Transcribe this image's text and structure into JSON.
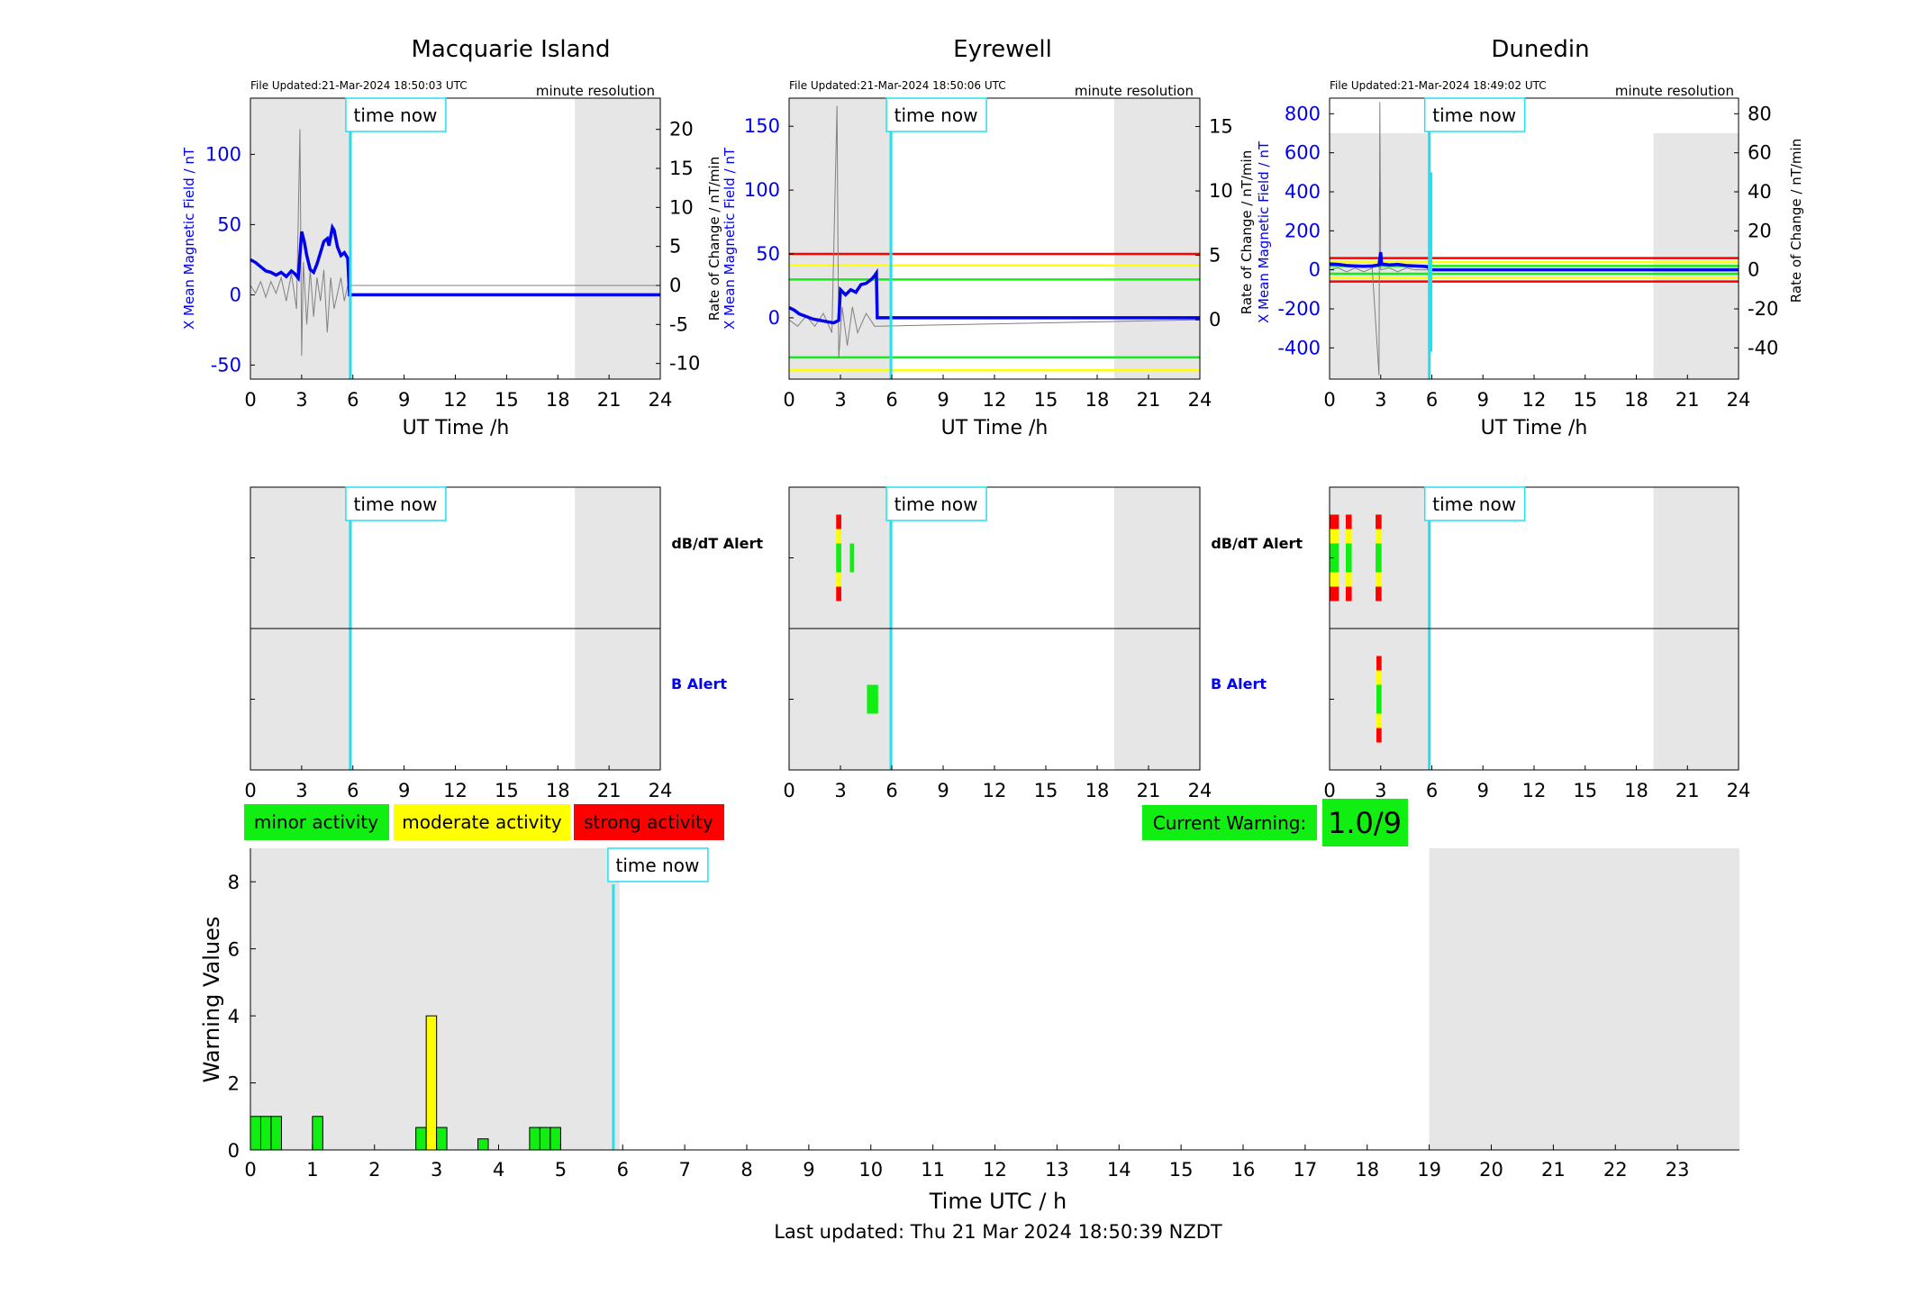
{
  "colors": {
    "blue": "#0000ee",
    "grey": "#808080",
    "cyan": "#22e0f0",
    "shade": "#e6e6e6",
    "green": "#11ee11",
    "yellow": "#ffff00",
    "red": "#ff0000"
  },
  "labels": {
    "time_now": "time now",
    "minute_resolution": "minute resolution",
    "ut_time": "UT Time /h",
    "dbdt_alert": "dB/dT Alert",
    "b_alert": "B Alert",
    "y_left": "X Mean Magnetic Field / nT",
    "y_right": "Rate of Change / nT/min",
    "warning_ylabel": "Warning Values",
    "warning_xlabel": "Time UTC / h",
    "last_updated": "Last updated: Thu 21 Mar 2024 18:50:39 NZDT"
  },
  "legend": {
    "minor": "minor activity",
    "moderate": "moderate activity",
    "strong": "strong activity"
  },
  "current_warning": {
    "label": "Current Warning:",
    "value": "1.0/9"
  },
  "chart_data": [
    {
      "id": "macquarie",
      "type": "line",
      "title": "Macquarie Island",
      "file_updated": "File Updated:21-Mar-2024 18:50:03 UTC",
      "xlim": [
        0,
        24
      ],
      "xticks": [
        0,
        3,
        6,
        9,
        12,
        15,
        18,
        21,
        24
      ],
      "ylim_left": [
        -60,
        140
      ],
      "ylim_right": [
        -12,
        24
      ],
      "yticks_left": [
        -50,
        0,
        50,
        100
      ],
      "yticks_right": [
        -10,
        -5,
        0,
        5,
        10,
        15,
        20
      ],
      "time_now": 5.85,
      "night_shade": [
        [
          0,
          5.95
        ],
        [
          19,
          24
        ]
      ],
      "field_series": [
        [
          0,
          25
        ],
        [
          0.3,
          23
        ],
        [
          0.6,
          20
        ],
        [
          0.9,
          17
        ],
        [
          1.2,
          16
        ],
        [
          1.5,
          14
        ],
        [
          1.8,
          16
        ],
        [
          2.1,
          13
        ],
        [
          2.4,
          17
        ],
        [
          2.6,
          15
        ],
        [
          2.8,
          12
        ],
        [
          3.0,
          45
        ],
        [
          3.15,
          38
        ],
        [
          3.3,
          28
        ],
        [
          3.5,
          18
        ],
        [
          3.7,
          16
        ],
        [
          3.9,
          22
        ],
        [
          4.1,
          30
        ],
        [
          4.3,
          38
        ],
        [
          4.5,
          40
        ],
        [
          4.6,
          35
        ],
        [
          4.8,
          48
        ],
        [
          4.9,
          46
        ],
        [
          5.1,
          34
        ],
        [
          5.3,
          28
        ],
        [
          5.5,
          30
        ],
        [
          5.7,
          26
        ],
        [
          5.8,
          0
        ],
        [
          24,
          0
        ]
      ],
      "rate_series": [
        [
          0,
          0
        ],
        [
          0.3,
          -1
        ],
        [
          0.6,
          0.5
        ],
        [
          0.9,
          -1.5
        ],
        [
          1.2,
          0.5
        ],
        [
          1.5,
          -1
        ],
        [
          1.8,
          1
        ],
        [
          2.1,
          -2
        ],
        [
          2.4,
          1.5
        ],
        [
          2.7,
          -3
        ],
        [
          2.9,
          20
        ],
        [
          3.0,
          -9
        ],
        [
          3.1,
          3
        ],
        [
          3.3,
          -5
        ],
        [
          3.5,
          2
        ],
        [
          3.7,
          -4
        ],
        [
          3.9,
          1
        ],
        [
          4.1,
          -2
        ],
        [
          4.3,
          2
        ],
        [
          4.5,
          -6
        ],
        [
          4.7,
          1
        ],
        [
          4.9,
          -3
        ],
        [
          5.1,
          -1
        ],
        [
          5.3,
          1
        ],
        [
          5.5,
          -2
        ],
        [
          5.7,
          0
        ],
        [
          24,
          0
        ]
      ],
      "thresholds": []
    },
    {
      "id": "eyrewell",
      "type": "line",
      "title": "Eyrewell",
      "file_updated": "File Updated:21-Mar-2024 18:50:06 UTC",
      "xlim": [
        0,
        24
      ],
      "xticks": [
        0,
        3,
        6,
        9,
        12,
        15,
        18,
        21,
        24
      ],
      "ylim_left": [
        -48,
        172
      ],
      "ylim_right": [
        -4.6,
        17.2
      ],
      "yticks_left": [
        0,
        50,
        100,
        150
      ],
      "yticks_right": [
        0,
        5,
        10,
        15
      ],
      "time_now": 5.95,
      "night_shade": [
        [
          0,
          5.95
        ],
        [
          19,
          24
        ]
      ],
      "field_series": [
        [
          0,
          8
        ],
        [
          0.3,
          6
        ],
        [
          0.6,
          3
        ],
        [
          1.0,
          1
        ],
        [
          1.4,
          -1
        ],
        [
          1.8,
          -2
        ],
        [
          2.2,
          -3
        ],
        [
          2.6,
          -4
        ],
        [
          2.9,
          -2
        ],
        [
          3.0,
          22
        ],
        [
          3.3,
          18
        ],
        [
          3.6,
          22
        ],
        [
          3.9,
          20
        ],
        [
          4.2,
          26
        ],
        [
          4.5,
          27
        ],
        [
          4.8,
          30
        ],
        [
          5.0,
          33
        ],
        [
          5.1,
          35
        ],
        [
          5.15,
          0
        ],
        [
          24,
          0
        ]
      ],
      "rate_series": [
        [
          0,
          0
        ],
        [
          0.5,
          -0.5
        ],
        [
          1.0,
          0.3
        ],
        [
          1.5,
          -0.5
        ],
        [
          2.0,
          0.5
        ],
        [
          2.5,
          -1
        ],
        [
          2.8,
          16.6
        ],
        [
          2.9,
          -3
        ],
        [
          3.1,
          1
        ],
        [
          3.4,
          -2
        ],
        [
          3.7,
          1
        ],
        [
          4.0,
          -1
        ],
        [
          4.5,
          0.5
        ],
        [
          5.0,
          -0.5
        ],
        [
          24,
          0
        ]
      ],
      "thresholds": [
        {
          "value": 50,
          "color": "red"
        },
        {
          "value": 41,
          "color": "yellow"
        },
        {
          "value": 30,
          "color": "green"
        },
        {
          "value": -31,
          "color": "green"
        },
        {
          "value": -41,
          "color": "yellow"
        }
      ]
    },
    {
      "id": "dunedin",
      "type": "line",
      "title": "Dunedin",
      "file_updated": "File Updated:21-Mar-2024 18:49:02 UTC",
      "xlim": [
        0,
        24
      ],
      "xticks": [
        0,
        3,
        6,
        9,
        12,
        15,
        18,
        21,
        24
      ],
      "ylim_left": [
        -560,
        880
      ],
      "ylim_right": [
        -56,
        88
      ],
      "yticks_left": [
        -400,
        -200,
        0,
        200,
        400,
        600,
        800
      ],
      "yticks_right": [
        -40,
        -20,
        0,
        20,
        40,
        60,
        80
      ],
      "time_now": 5.85,
      "night_shade": [
        [
          0,
          5.95
        ],
        [
          19,
          24
        ]
      ],
      "field_series": [
        [
          0,
          30
        ],
        [
          0.5,
          28
        ],
        [
          1.0,
          22
        ],
        [
          1.5,
          20
        ],
        [
          2.0,
          18
        ],
        [
          2.5,
          20
        ],
        [
          2.9,
          25
        ],
        [
          3.0,
          90
        ],
        [
          3.05,
          30
        ],
        [
          3.5,
          25
        ],
        [
          4.0,
          28
        ],
        [
          4.5,
          22
        ],
        [
          5.0,
          20
        ],
        [
          5.5,
          18
        ],
        [
          5.8,
          15
        ],
        [
          5.85,
          0
        ],
        [
          24,
          0
        ]
      ],
      "rate_series": [
        [
          0,
          0
        ],
        [
          0.5,
          1
        ],
        [
          1.0,
          -1
        ],
        [
          1.5,
          1
        ],
        [
          2.0,
          -1
        ],
        [
          2.5,
          1
        ],
        [
          2.9,
          -54
        ],
        [
          2.95,
          86
        ],
        [
          3.0,
          0
        ],
        [
          3.5,
          1
        ],
        [
          4.0,
          -1
        ],
        [
          4.5,
          1
        ],
        [
          5.0,
          0
        ],
        [
          24,
          0
        ]
      ],
      "cyan_spike": [
        5.95,
        -420,
        500
      ],
      "thresholds": [
        {
          "value": 60,
          "color": "red"
        },
        {
          "value": 40,
          "color": "yellow"
        },
        {
          "value": 20,
          "color": "green"
        },
        {
          "value": -20,
          "color": "green"
        },
        {
          "value": -40,
          "color": "yellow"
        },
        {
          "value": -60,
          "color": "red"
        }
      ]
    },
    {
      "id": "alerts_macquarie",
      "type": "heatmap",
      "xlim": [
        0,
        24
      ],
      "xticks": [
        0,
        3,
        6,
        9,
        12,
        15,
        18,
        21,
        24
      ],
      "time_now": 5.85,
      "night_shade": [
        [
          0,
          5.95
        ],
        [
          19,
          24
        ]
      ],
      "dbdt_blocks": [],
      "b_blocks": []
    },
    {
      "id": "alerts_eyrewell",
      "type": "heatmap",
      "xlim": [
        0,
        24
      ],
      "xticks": [
        0,
        3,
        6,
        9,
        12,
        15,
        18,
        21,
        24
      ],
      "time_now": 5.95,
      "night_shade": [
        [
          0,
          5.95
        ],
        [
          19,
          24
        ]
      ],
      "dbdt_blocks": [
        {
          "x0": 2.75,
          "x1": 3.05,
          "level": 3
        },
        {
          "x0": 3.55,
          "x1": 3.8,
          "level": 1
        }
      ],
      "b_blocks": [
        {
          "x0": 4.55,
          "x1": 5.2,
          "level": 1
        }
      ]
    },
    {
      "id": "alerts_dunedin",
      "type": "heatmap",
      "xlim": [
        0,
        24
      ],
      "xticks": [
        0,
        3,
        6,
        9,
        12,
        15,
        18,
        21,
        24
      ],
      "time_now": 5.85,
      "night_shade": [
        [
          0,
          5.95
        ],
        [
          19,
          24
        ]
      ],
      "dbdt_blocks": [
        {
          "x0": 0.0,
          "x1": 0.55,
          "level": 3
        },
        {
          "x0": 0.95,
          "x1": 1.3,
          "level": 3
        },
        {
          "x0": 2.7,
          "x1": 3.05,
          "level": 3
        }
      ],
      "b_blocks": [
        {
          "x0": 2.75,
          "x1": 3.05,
          "level": 3
        }
      ]
    },
    {
      "id": "warning_values",
      "type": "bar",
      "xlabel": "Time UTC / h",
      "ylabel": "Warning Values",
      "xlim": [
        0,
        24
      ],
      "ylim": [
        0,
        9
      ],
      "xticks": [
        0,
        1,
        2,
        3,
        4,
        5,
        6,
        7,
        8,
        9,
        10,
        11,
        12,
        13,
        14,
        15,
        16,
        17,
        18,
        19,
        20,
        21,
        22,
        23
      ],
      "yticks": [
        0,
        2,
        4,
        6,
        8
      ],
      "time_now": 5.85,
      "night_shade": [
        [
          0,
          5.95
        ],
        [
          19,
          24
        ]
      ],
      "bar_width": 0.167,
      "bars": [
        {
          "x": 0.083,
          "value": 1.0,
          "color": "green"
        },
        {
          "x": 0.25,
          "value": 1.0,
          "color": "green"
        },
        {
          "x": 0.417,
          "value": 1.0,
          "color": "green"
        },
        {
          "x": 1.083,
          "value": 1.0,
          "color": "green"
        },
        {
          "x": 2.75,
          "value": 0.67,
          "color": "green"
        },
        {
          "x": 2.917,
          "value": 4.0,
          "color": "yellow"
        },
        {
          "x": 3.083,
          "value": 0.67,
          "color": "green"
        },
        {
          "x": 3.75,
          "value": 0.33,
          "color": "green"
        },
        {
          "x": 4.583,
          "value": 0.67,
          "color": "green"
        },
        {
          "x": 4.75,
          "value": 0.67,
          "color": "green"
        },
        {
          "x": 4.917,
          "value": 0.67,
          "color": "green"
        }
      ]
    }
  ]
}
